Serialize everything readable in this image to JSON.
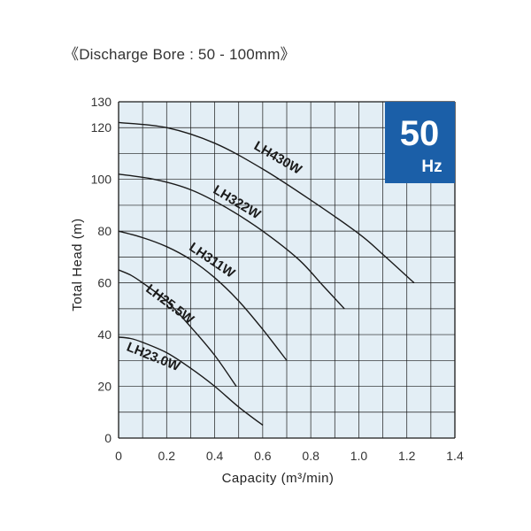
{
  "header": {
    "title": "《Discharge Bore : 50 - 100mm》"
  },
  "badge": {
    "value": "50",
    "unit": "Hz",
    "color": "#1b5fa8"
  },
  "colors": {
    "plot_bg": "#e3eef5",
    "grid": "#1a1a1a",
    "curve": "#1a1a1a"
  },
  "chart_data": {
    "type": "line",
    "xlabel": "Capacity (m³/min)",
    "ylabel": "Total Head (m)",
    "xlim": [
      0,
      1.4
    ],
    "ylim": [
      0,
      130
    ],
    "xticks": [
      0,
      0.2,
      0.4,
      0.6,
      0.8,
      1.0,
      1.2,
      1.4
    ],
    "xtick_labels": [
      "0",
      "0.2",
      "0.4",
      "0.6",
      "0.8",
      "1.0",
      "1.2",
      "1.4"
    ],
    "yticks": [
      0,
      20,
      40,
      60,
      80,
      100,
      120,
      130
    ],
    "ytick_labels": [
      "0",
      "20",
      "40",
      "60",
      "80",
      "100",
      "120",
      "130"
    ],
    "grid": true,
    "series": [
      {
        "name": "LH430W",
        "x": [
          0,
          0.2,
          0.4,
          0.6,
          0.8,
          1.0,
          1.1,
          1.23
        ],
        "y": [
          122,
          120,
          114,
          104,
          92,
          79,
          71,
          60
        ]
      },
      {
        "name": "LH322W",
        "x": [
          0,
          0.15,
          0.3,
          0.45,
          0.6,
          0.75,
          0.85,
          0.94
        ],
        "y": [
          102,
          100,
          96,
          89,
          80,
          69,
          59,
          50
        ]
      },
      {
        "name": "LH311W",
        "x": [
          0,
          0.1,
          0.2,
          0.3,
          0.4,
          0.5,
          0.6,
          0.7
        ],
        "y": [
          80,
          77.5,
          74,
          69,
          62,
          53,
          42,
          30
        ]
      },
      {
        "name": "LH25.5W",
        "x": [
          0,
          0.05,
          0.1,
          0.2,
          0.3,
          0.4,
          0.49
        ],
        "y": [
          65,
          63,
          60,
          53,
          43,
          32,
          20
        ]
      },
      {
        "name": "LH23.0W",
        "x": [
          0,
          0.05,
          0.1,
          0.2,
          0.3,
          0.4,
          0.5,
          0.6
        ],
        "y": [
          39,
          38.5,
          37,
          33,
          27,
          20,
          12,
          5
        ]
      }
    ]
  }
}
